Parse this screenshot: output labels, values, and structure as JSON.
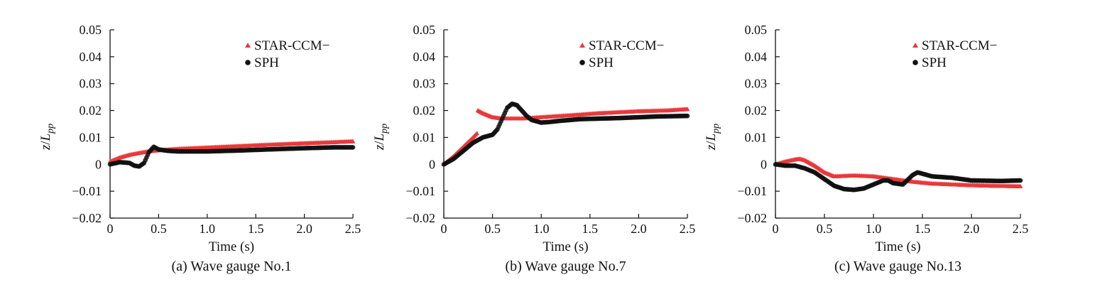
{
  "chart_data": [
    {
      "type": "scatter",
      "caption": "(a) Wave gauge No.1",
      "xlabel": "Time (s)",
      "ylabel_main": "z/",
      "ylabel_italic": "L",
      "ylabel_sub": "pp",
      "xlim": [
        0,
        2.5
      ],
      "ylim": [
        -0.02,
        0.05
      ],
      "xticks": [
        0,
        0.5,
        1.0,
        1.5,
        2.0,
        2.5
      ],
      "xtick_labels": [
        "0",
        "0.5",
        "1.0",
        "1.5",
        "2.0",
        "2.5"
      ],
      "yticks": [
        -0.02,
        -0.01,
        0,
        0.01,
        0.02,
        0.03,
        0.04,
        0.05
      ],
      "ytick_labels": [
        "−0.02",
        "−0.01",
        "0",
        "0.01",
        "0.02",
        "0.03",
        "0.04",
        "0.05"
      ],
      "legend_position": "top-right",
      "series": [
        {
          "name": "STAR-CCM−",
          "color": "#e8393c",
          "marker": "triangle",
          "x": [
            0,
            0.1,
            0.2,
            0.3,
            0.4,
            0.5,
            0.7,
            1.0,
            1.3,
            1.6,
            2.0,
            2.3,
            2.5
          ],
          "y": [
            0.001,
            0.0025,
            0.0035,
            0.0042,
            0.0048,
            0.0052,
            0.0057,
            0.0062,
            0.0067,
            0.0072,
            0.0078,
            0.0082,
            0.0085
          ]
        },
        {
          "name": "SPH",
          "color": "#111111",
          "marker": "circle",
          "x": [
            0,
            0.1,
            0.2,
            0.25,
            0.3,
            0.35,
            0.4,
            0.45,
            0.5,
            0.6,
            0.7,
            1.0,
            1.3,
            1.6,
            2.0,
            2.3,
            2.5
          ],
          "y": [
            0.0,
            0.0008,
            0.0005,
            -0.0005,
            -0.0008,
            0.0005,
            0.0045,
            0.0065,
            0.0055,
            0.005,
            0.0048,
            0.0048,
            0.0051,
            0.0055,
            0.006,
            0.0063,
            0.0063
          ]
        }
      ]
    },
    {
      "type": "scatter",
      "caption": "(b) Wave gauge No.7",
      "xlabel": "Time (s)",
      "ylabel_main": "z/",
      "ylabel_italic": "L",
      "ylabel_sub": "pp",
      "xlim": [
        0,
        2.5
      ],
      "ylim": [
        -0.02,
        0.05
      ],
      "xticks": [
        0,
        0.5,
        1.0,
        1.5,
        2.0,
        2.5
      ],
      "xtick_labels": [
        "0",
        "0.5",
        "1.0",
        "1.5",
        "2.0",
        "2.5"
      ],
      "yticks": [
        -0.02,
        -0.01,
        0,
        0.01,
        0.02,
        0.03,
        0.04,
        0.05
      ],
      "ytick_labels": [
        "−0.02",
        "−0.01",
        "0",
        "0.01",
        "0.02",
        "0.03",
        "0.04",
        "0.05"
      ],
      "legend_position": "top-right",
      "series": [
        {
          "name": "STAR-CCM−",
          "color": "#e8393c",
          "marker": "triangle",
          "x": [
            0,
            0.1,
            0.2,
            0.3,
            0.34,
            0.35,
            0.4,
            0.5,
            0.6,
            0.8,
            1.0,
            1.3,
            1.6,
            2.0,
            2.3,
            2.5
          ],
          "y": [
            0.0,
            0.003,
            0.0065,
            0.01,
            0.0115,
            0.02,
            0.019,
            0.0175,
            0.017,
            0.017,
            0.0175,
            0.0182,
            0.019,
            0.0197,
            0.02,
            0.0205
          ]
        },
        {
          "name": "SPH",
          "color": "#111111",
          "marker": "circle",
          "x": [
            0,
            0.1,
            0.2,
            0.3,
            0.4,
            0.5,
            0.55,
            0.6,
            0.65,
            0.7,
            0.75,
            0.8,
            0.85,
            0.9,
            1.0,
            1.1,
            1.2,
            1.4,
            1.6,
            1.8,
            2.0,
            2.2,
            2.5
          ],
          "y": [
            0.0,
            0.002,
            0.005,
            0.008,
            0.01,
            0.011,
            0.013,
            0.017,
            0.021,
            0.0225,
            0.022,
            0.02,
            0.018,
            0.0165,
            0.0155,
            0.0158,
            0.0162,
            0.0168,
            0.017,
            0.0172,
            0.0175,
            0.0178,
            0.018
          ]
        }
      ]
    },
    {
      "type": "scatter",
      "caption": "(c) Wave gauge No.13",
      "xlabel": "Time (s)",
      "ylabel_main": "z/",
      "ylabel_italic": "L",
      "ylabel_sub": "pp",
      "xlim": [
        0,
        2.5
      ],
      "ylim": [
        -0.02,
        0.05
      ],
      "xticks": [
        0,
        0.5,
        1.0,
        1.5,
        2.0,
        2.5
      ],
      "xtick_labels": [
        "0",
        "0.5",
        "1.0",
        "1.5",
        "2.0",
        "2.5"
      ],
      "yticks": [
        -0.02,
        -0.01,
        0,
        0.01,
        0.02,
        0.03,
        0.04,
        0.05
      ],
      "ytick_labels": [
        "−0.02",
        "−0.01",
        "0",
        "0.01",
        "0.02",
        "0.03",
        "0.04",
        "0.05"
      ],
      "legend_position": "top-right",
      "series": [
        {
          "name": "STAR-CCM−",
          "color": "#e8393c",
          "marker": "triangle",
          "x": [
            0,
            0.1,
            0.2,
            0.25,
            0.3,
            0.4,
            0.5,
            0.6,
            0.8,
            1.0,
            1.2,
            1.4,
            1.6,
            1.8,
            2.0,
            2.2,
            2.5
          ],
          "y": [
            0.0,
            0.001,
            0.0018,
            0.002,
            0.0015,
            -0.0005,
            -0.003,
            -0.0045,
            -0.0042,
            -0.0045,
            -0.0055,
            -0.0065,
            -0.0072,
            -0.0075,
            -0.0078,
            -0.008,
            -0.0082
          ]
        },
        {
          "name": "SPH",
          "color": "#111111",
          "marker": "circle",
          "x": [
            0,
            0.1,
            0.2,
            0.3,
            0.4,
            0.5,
            0.6,
            0.7,
            0.8,
            0.9,
            1.0,
            1.1,
            1.15,
            1.2,
            1.3,
            1.4,
            1.45,
            1.5,
            1.6,
            1.8,
            2.0,
            2.3,
            2.5
          ],
          "y": [
            0.0,
            -0.0005,
            -0.0005,
            -0.0015,
            -0.003,
            -0.0055,
            -0.008,
            -0.0092,
            -0.0095,
            -0.009,
            -0.0075,
            -0.006,
            -0.006,
            -0.007,
            -0.0075,
            -0.004,
            -0.003,
            -0.0035,
            -0.0045,
            -0.005,
            -0.006,
            -0.0062,
            -0.006
          ]
        }
      ]
    }
  ]
}
